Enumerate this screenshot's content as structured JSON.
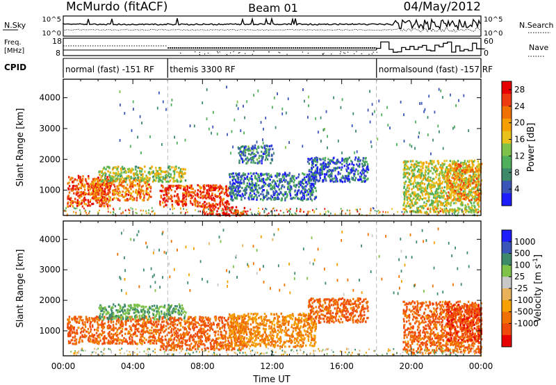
{
  "header": {
    "station": "McMurdo (fitACF)",
    "beam": "Beam 01",
    "date": "04/May/2012"
  },
  "top_panels": {
    "nsky_label": "N.Sky",
    "nsearch_label": "N.Search",
    "noise_ticks": [
      "10^5",
      "10^0"
    ],
    "noise_ticks_right": [
      "10^5",
      "10^0"
    ],
    "freq_label_line1": "Freq.",
    "freq_label_line2": "[MHz]",
    "freq_ticks": [
      "18",
      "8"
    ],
    "nave_label": "Nave",
    "nave_ticks": [
      "60",
      "0"
    ],
    "cpid_label": "CPID",
    "cpid_segments": [
      {
        "label": "normal (fast) -151 RF",
        "start_hour": 0,
        "end_hour": 6
      },
      {
        "label": "themis 3300 RF",
        "start_hour": 6,
        "end_hour": 18
      },
      {
        "label": "normalsound (fast) -157 RF",
        "start_hour": 18,
        "end_hour": 24
      }
    ]
  },
  "colors": {
    "power_scale": [
      "#1d1dff",
      "#3a54b8",
      "#3c8a6a",
      "#4faf5a",
      "#7fc24a",
      "#e8c21a",
      "#f5a000",
      "#f07000",
      "#ee3a10",
      "#e80000"
    ],
    "velocity_scale": [
      "#e80000",
      "#f04a0a",
      "#f07000",
      "#f5a000",
      "#e8b25a",
      "#c8c8c8",
      "#7fc24a",
      "#3c8a6a",
      "#3a54b8",
      "#1d1dff"
    ]
  },
  "chart_data": [
    {
      "type": "heatmap",
      "name": "power",
      "title": "",
      "ylabel": "Slant Range [km]",
      "xlabel": "Time UT",
      "xlim": [
        0,
        24
      ],
      "ylim": [
        180,
        4600
      ],
      "x_ticks": [
        "00:00",
        "04:00",
        "08:00",
        "12:00",
        "16:00",
        "20:00",
        "00:00"
      ],
      "y_ticks": [
        "1000",
        "2000",
        "3000",
        "4000"
      ],
      "y_tick_values": [
        1000,
        2000,
        3000,
        4000
      ],
      "colorbar_label": "Power [dB]",
      "colorbar_ticks": [
        "4",
        "8",
        "12",
        "16",
        "20",
        "24",
        "28"
      ],
      "colorbar_range": [
        0,
        30
      ],
      "regions": [
        {
          "t0": 0.2,
          "t1": 2.7,
          "r0": 500,
          "r1": 1500,
          "level": 25
        },
        {
          "t0": 1.5,
          "t1": 5.0,
          "r0": 700,
          "r1": 1400,
          "level": 22
        },
        {
          "t0": 5.5,
          "t1": 9.5,
          "r0": 500,
          "r1": 1200,
          "level": 26
        },
        {
          "t0": 8.0,
          "t1": 10.5,
          "r0": 200,
          "r1": 500,
          "level": 28
        },
        {
          "t0": 2.0,
          "t1": 7.0,
          "r0": 1300,
          "r1": 1800,
          "level": 14
        },
        {
          "t0": 9.5,
          "t1": 14.5,
          "r0": 700,
          "r1": 1600,
          "level": 6
        },
        {
          "t0": 14.0,
          "t1": 17.5,
          "r0": 1300,
          "r1": 2100,
          "level": 5
        },
        {
          "t0": 10.0,
          "t1": 12.0,
          "r0": 1900,
          "r1": 2500,
          "level": 7
        },
        {
          "t0": 19.5,
          "t1": 23.9,
          "r0": 300,
          "r1": 2000,
          "level": 15
        },
        {
          "t0": 22.0,
          "t1": 24.0,
          "r0": 700,
          "r1": 1900,
          "level": 20
        }
      ]
    },
    {
      "type": "heatmap",
      "name": "velocity",
      "title": "",
      "ylabel": "Slant Range [km]",
      "xlabel": "Time UT",
      "xlim": [
        0,
        24
      ],
      "ylim": [
        180,
        4600
      ],
      "x_ticks": [
        "00:00",
        "04:00",
        "08:00",
        "12:00",
        "16:00",
        "20:00",
        "00:00"
      ],
      "y_ticks": [
        "1000",
        "2000",
        "3000",
        "4000"
      ],
      "y_tick_values": [
        1000,
        2000,
        3000,
        4000
      ],
      "colorbar_label": "Velocity [m s^-1]",
      "colorbar_ticks": [
        "1000",
        "500",
        "100",
        "25",
        "-25",
        "-100",
        "-500",
        "-1000"
      ],
      "regions": [
        {
          "t0": 0.2,
          "t1": 5.5,
          "r0": 600,
          "r1": 1500,
          "level": -300
        },
        {
          "t0": 2.0,
          "t1": 7.0,
          "r0": 1400,
          "r1": 1900,
          "level": 60
        },
        {
          "t0": 5.5,
          "t1": 10.5,
          "r0": 400,
          "r1": 1500,
          "level": -300
        },
        {
          "t0": 9.5,
          "t1": 14.5,
          "r0": 500,
          "r1": 1600,
          "level": -150
        },
        {
          "t0": 14.0,
          "t1": 17.5,
          "r0": 1300,
          "r1": 2100,
          "level": -300
        },
        {
          "t0": 19.5,
          "t1": 24.0,
          "r0": 300,
          "r1": 2000,
          "level": -300
        },
        {
          "t0": 22.0,
          "t1": 24.0,
          "r0": 700,
          "r1": 1900,
          "level": -600
        }
      ]
    }
  ]
}
